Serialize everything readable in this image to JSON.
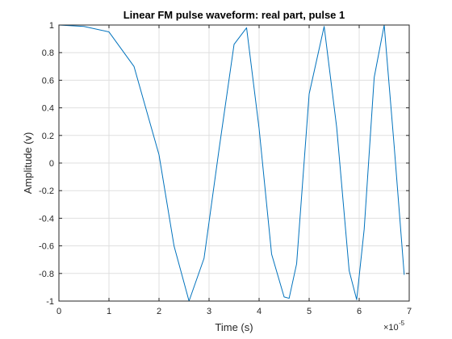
{
  "chart_data": {
    "type": "line",
    "title": "Linear FM pulse waveform: real part, pulse 1",
    "xlabel": "Time (s)",
    "ylabel": "Amplitude (v)",
    "x_exponent_base": "×10",
    "x_exponent_power": "-5",
    "xlim": [
      0,
      7e-05
    ],
    "ylim": [
      -1,
      1
    ],
    "x_ticks": [
      0,
      1e-05,
      2e-05,
      3e-05,
      4e-05,
      5e-05,
      6e-05,
      7e-05
    ],
    "x_tick_labels": [
      "0",
      "1",
      "2",
      "3",
      "4",
      "5",
      "6",
      "7"
    ],
    "y_ticks": [
      -1,
      -0.8,
      -0.6,
      -0.4,
      -0.2,
      0,
      0.2,
      0.4,
      0.6,
      0.8,
      1
    ],
    "y_tick_labels": [
      "-1",
      "-0.8",
      "-0.6",
      "-0.4",
      "-0.2",
      "0",
      "0.2",
      "0.4",
      "0.6",
      "0.8",
      "1"
    ],
    "grid": true,
    "line_color": "#0072BD",
    "series": [
      {
        "x": [
          0,
          5e-06,
          1e-05,
          1.5e-05,
          2e-05,
          2.3e-05,
          2.6e-05,
          2.9e-05,
          3.2e-05,
          3.5e-05,
          3.75e-05,
          4e-05,
          4.25e-05,
          4.5e-05,
          4.6e-05,
          4.75e-05,
          5e-05,
          5.3e-05,
          5.55e-05,
          5.8e-05,
          5.95e-05,
          6.1e-05,
          6.3e-05,
          6.5e-05,
          6.7e-05,
          6.9e-05
        ],
        "y": [
          1,
          0.99,
          0.95,
          0.7,
          0.06,
          -0.6,
          -1.0,
          -0.69,
          0.1,
          0.86,
          0.98,
          0.25,
          -0.66,
          -0.97,
          -0.98,
          -0.73,
          0.5,
          0.99,
          0.26,
          -0.78,
          -0.99,
          -0.48,
          0.62,
          1.0,
          0.12,
          -0.81
        ]
      }
    ]
  }
}
